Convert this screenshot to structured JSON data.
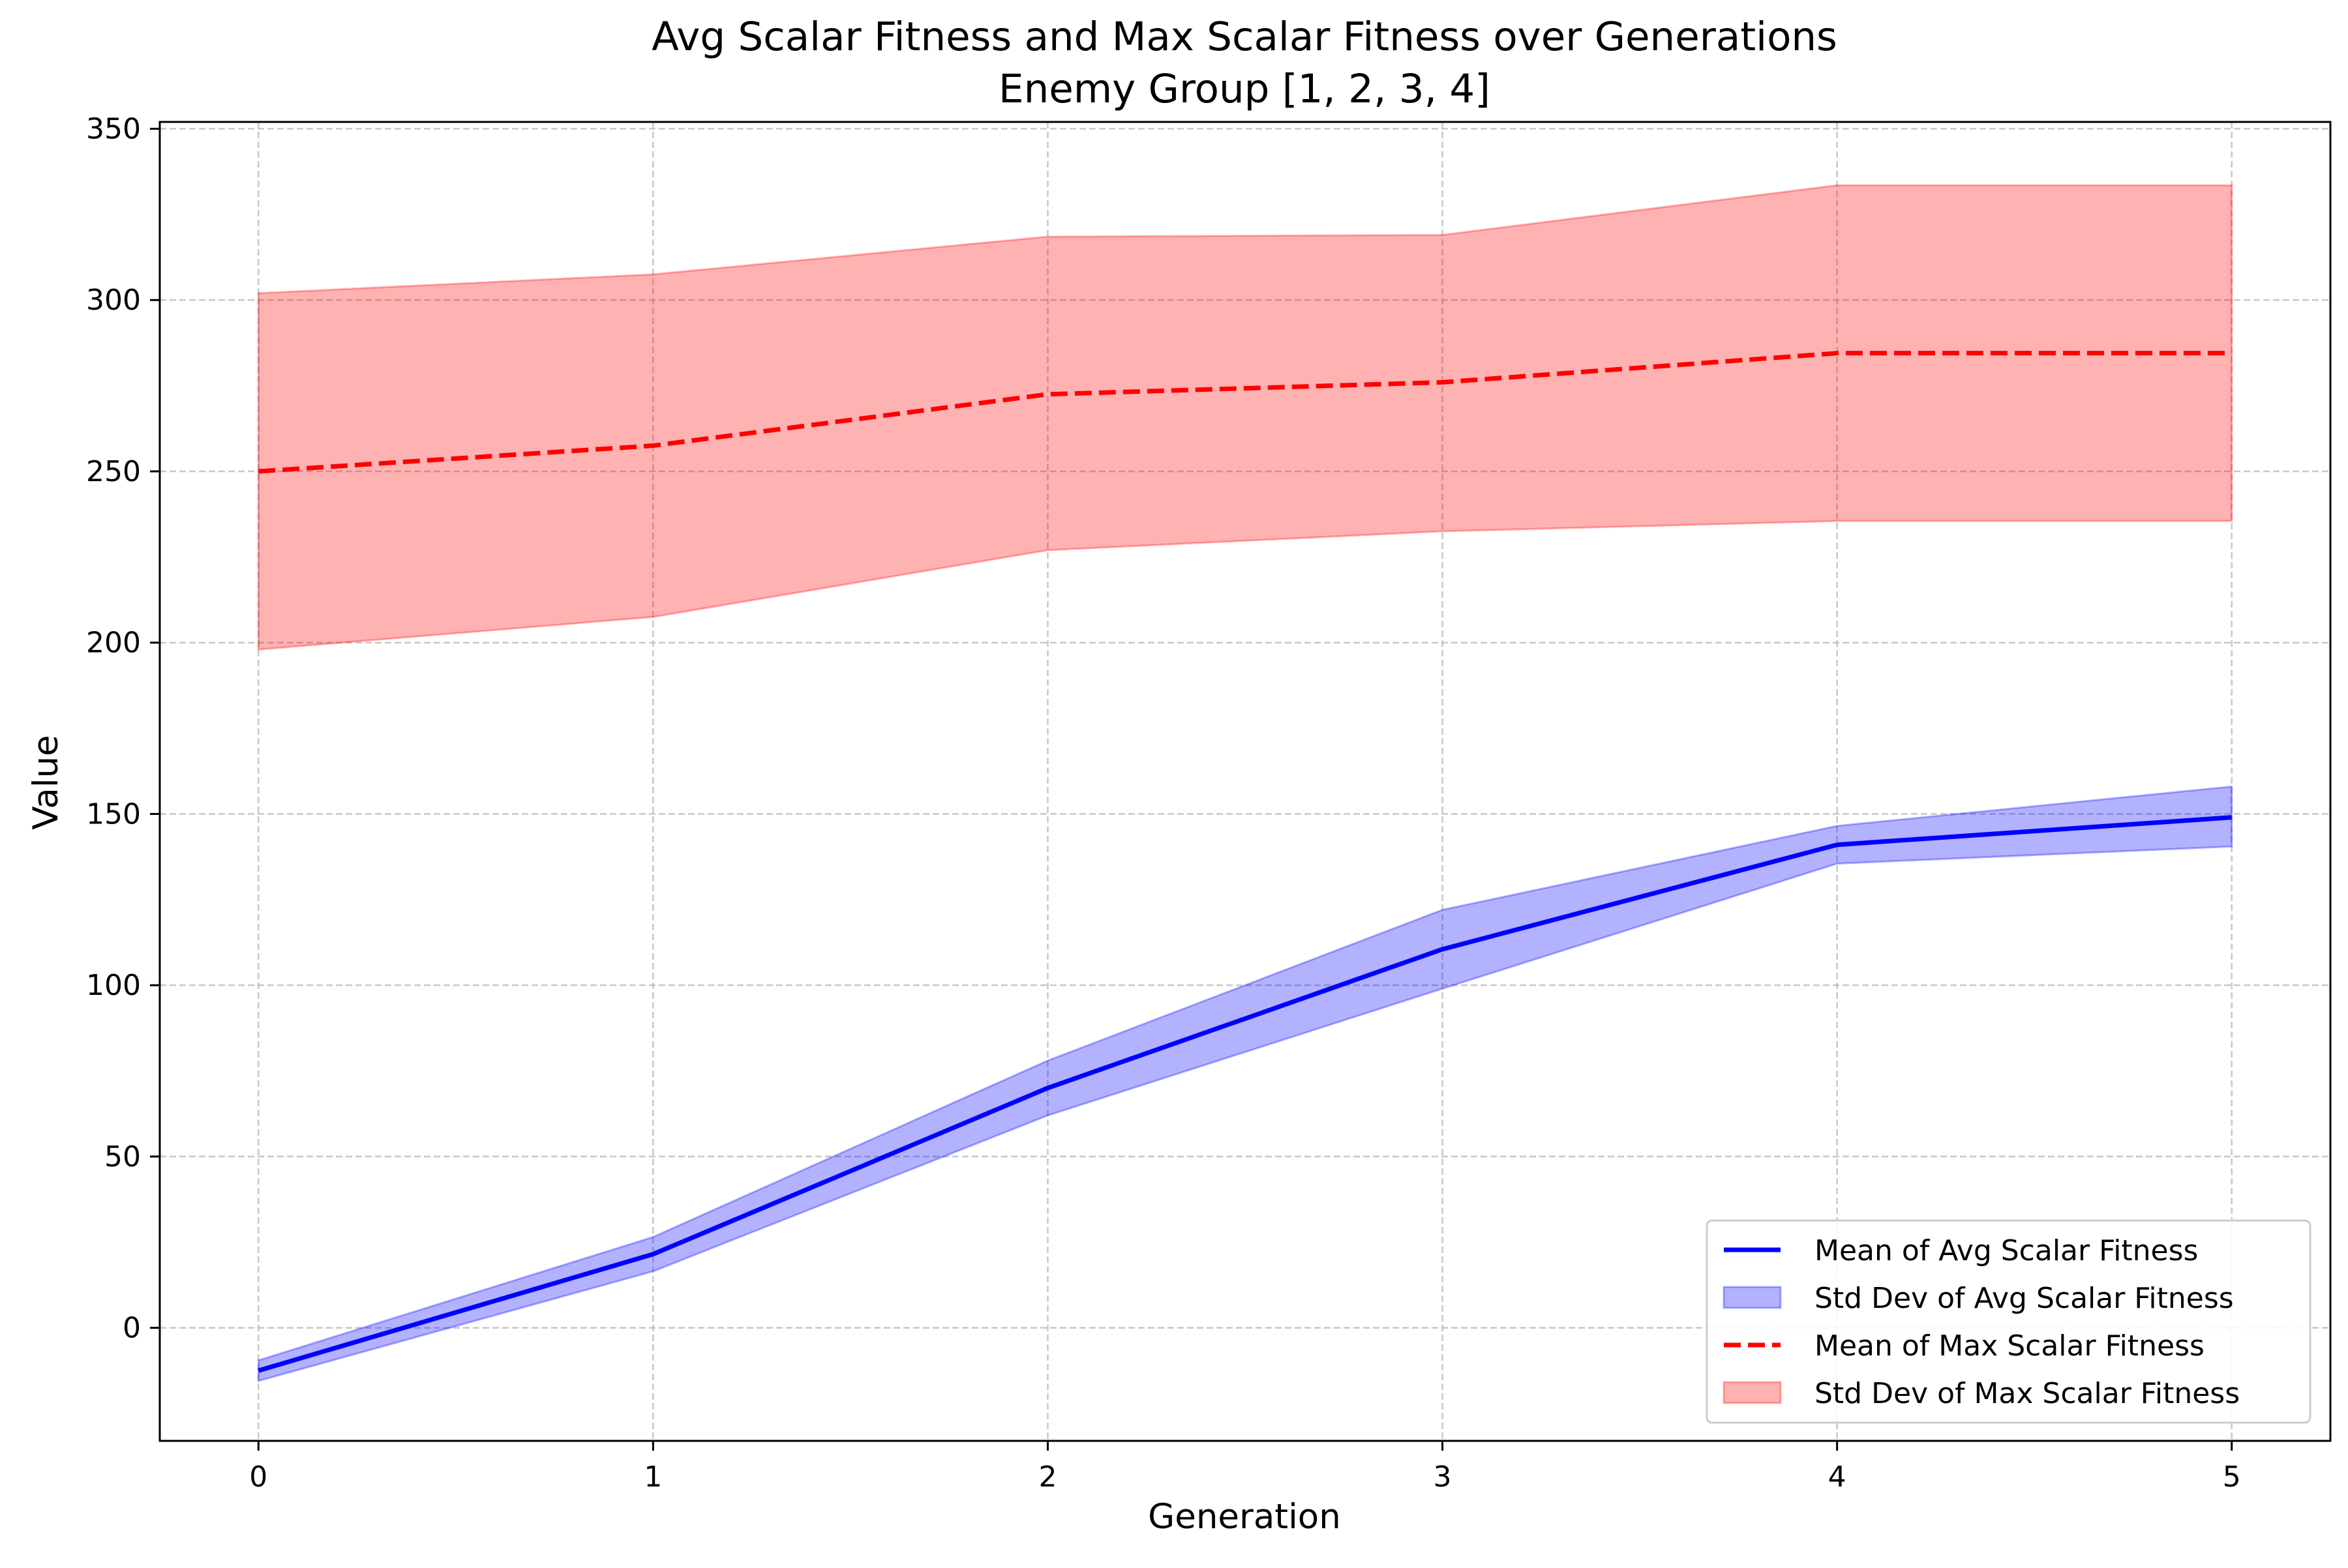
{
  "chart_data": {
    "type": "line",
    "title": "Avg Scalar Fitness and Max Scalar Fitness over Generations",
    "subtitle": "Enemy Group [1, 2, 3, 4]",
    "xlabel": "Generation",
    "ylabel": "Value",
    "xlim": [
      -0.25,
      5.25
    ],
    "ylim": [
      -33,
      352
    ],
    "x_ticks": [
      0,
      1,
      2,
      3,
      4,
      5
    ],
    "y_ticks": [
      0,
      50,
      100,
      150,
      200,
      250,
      300,
      350
    ],
    "grid": true,
    "legend_position": "bottom-right",
    "x": [
      0,
      1,
      2,
      3,
      4,
      5
    ],
    "series": [
      {
        "name": "Mean of Avg Scalar Fitness",
        "kind": "line",
        "style": "solid",
        "color": "#0000ff",
        "values": [
          -12.5,
          21.5,
          70,
          110.5,
          141,
          149
        ]
      },
      {
        "name": "Std Dev of Avg Scalar Fitness",
        "kind": "band",
        "color": "#0000ff",
        "lower": [
          -15.5,
          16.5,
          62,
          99,
          135.5,
          140.5
        ],
        "upper": [
          -9.5,
          26.5,
          78,
          122,
          146.5,
          158
        ]
      },
      {
        "name": "Mean of Max Scalar Fitness",
        "kind": "line",
        "style": "dashed",
        "color": "#ff0000",
        "values": [
          250,
          257.5,
          272.5,
          276,
          284.5,
          284.5
        ]
      },
      {
        "name": "Std Dev of Max Scalar Fitness",
        "kind": "band",
        "color": "#ff0000",
        "lower": [
          198,
          207.5,
          227,
          232.5,
          235.5,
          235.5
        ],
        "upper": [
          302,
          307.5,
          318.5,
          319,
          333.5,
          333.5
        ]
      }
    ]
  }
}
